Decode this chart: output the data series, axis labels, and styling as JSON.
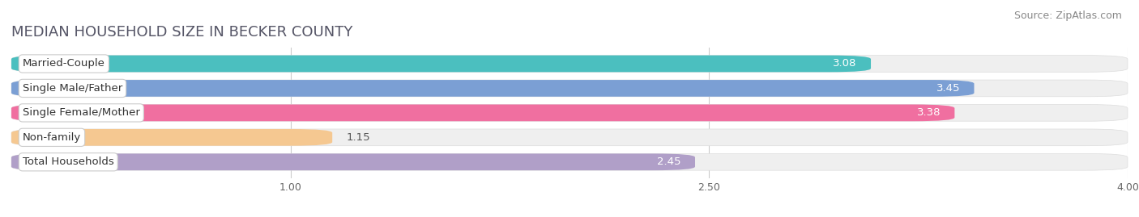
{
  "title": "MEDIAN HOUSEHOLD SIZE IN BECKER COUNTY",
  "source": "Source: ZipAtlas.com",
  "categories": [
    "Married-Couple",
    "Single Male/Father",
    "Single Female/Mother",
    "Non-family",
    "Total Households"
  ],
  "values": [
    3.08,
    3.45,
    3.38,
    1.15,
    2.45
  ],
  "bar_colors": [
    "#4BBFBF",
    "#7B9FD4",
    "#F06FA0",
    "#F5C891",
    "#B09FC8"
  ],
  "bar_edge_colors": [
    "#3AAEAE",
    "#6A8EC3",
    "#DF5E8F",
    "#E4B780",
    "#9F8EB7"
  ],
  "xlim": [
    0.0,
    4.0
  ],
  "xticks": [
    1.0,
    2.5,
    4.0
  ],
  "value_color_threshold": 1.5,
  "title_fontsize": 13,
  "source_fontsize": 9,
  "label_fontsize": 9.5,
  "value_fontsize": 9.5,
  "background_color": "#ffffff",
  "bar_background_color": "#efefef"
}
